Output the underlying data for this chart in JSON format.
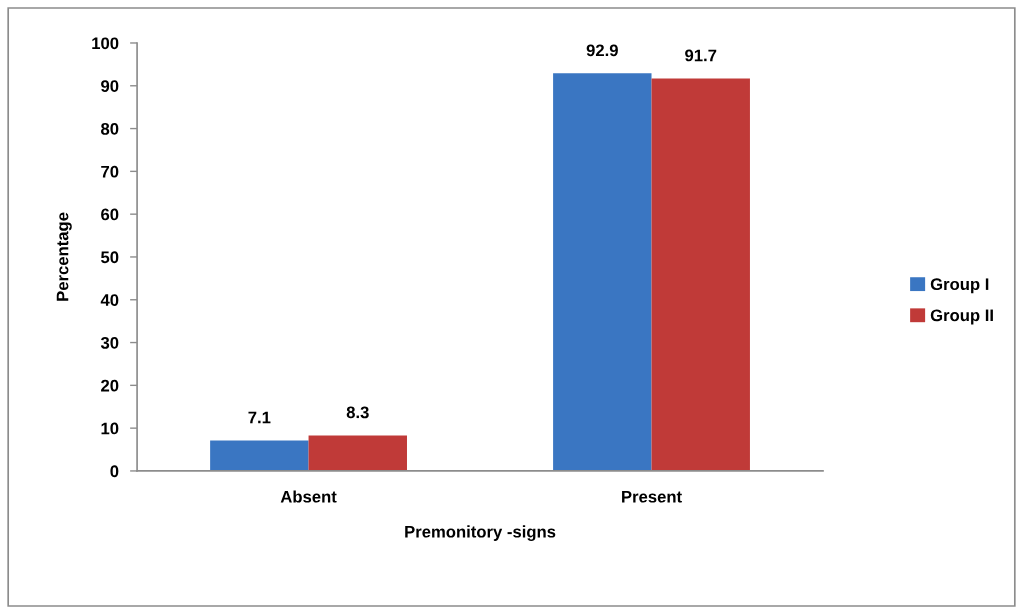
{
  "chart_data": {
    "type": "bar",
    "xlabel": "Premonitory -signs",
    "ylabel": "Percentage",
    "categories": [
      "Absent",
      "Present"
    ],
    "series": [
      {
        "name": "Group I",
        "color": "#3a76c2",
        "values": [
          7.1,
          92.9
        ]
      },
      {
        "name": "Group II",
        "color": "#c03a38",
        "values": [
          8.3,
          91.7
        ]
      }
    ],
    "ylim": [
      0,
      100
    ],
    "yticks": [
      0,
      10,
      20,
      30,
      40,
      50,
      60,
      70,
      80,
      90,
      100
    ],
    "grid": false,
    "legend": "right",
    "data_labels": true
  }
}
